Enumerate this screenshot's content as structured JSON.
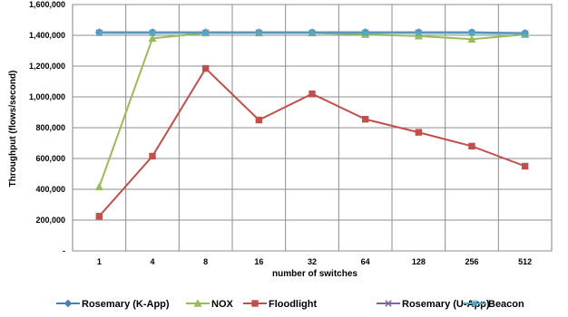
{
  "chart_data": {
    "type": "line",
    "title": "",
    "xlabel": "number of switches",
    "ylabel": "Throughput (flows/second)",
    "categories": [
      "1",
      "4",
      "8",
      "16",
      "32",
      "64",
      "128",
      "256",
      "512"
    ],
    "ylim": [
      0,
      1600000
    ],
    "yticks": [
      0,
      200000,
      400000,
      600000,
      800000,
      1000000,
      1200000,
      1400000,
      1600000
    ],
    "ytick_labels": [
      "-",
      "200,000",
      "400,000",
      "600,000",
      "800,000",
      "1,000,000",
      "1,200,000",
      "1,400,000",
      "1,600,000"
    ],
    "grid": true,
    "legend_position": "bottom",
    "series": [
      {
        "name": "Rosemary (K-App)",
        "marker": "diamond",
        "color": "#4a7ebb",
        "values": [
          1420000,
          1420000,
          1420000,
          1420000,
          1420000,
          1420000,
          1420000,
          1420000,
          1415000
        ]
      },
      {
        "name": "NOX",
        "marker": "triangle",
        "color": "#9bbb59",
        "values": [
          415000,
          1380000,
          1415000,
          1415000,
          1415000,
          1405000,
          1395000,
          1375000,
          1405000
        ]
      },
      {
        "name": "Floodlight",
        "marker": "square",
        "color": "#c0504d",
        "values": [
          225000,
          615000,
          1185000,
          850000,
          1020000,
          855000,
          770000,
          680000,
          550000
        ]
      },
      {
        "name": "Rosemary (U-App)",
        "marker": "x",
        "color": "#8064a2",
        "values": [
          1418000,
          1418000,
          1418000,
          1418000,
          1418000,
          1418000,
          1418000,
          1418000,
          1412000
        ]
      },
      {
        "name": "Beacon",
        "marker": "star",
        "color": "#4bacc6",
        "values": [
          1415000,
          1415000,
          1415000,
          1415000,
          1415000,
          1415000,
          1415000,
          1415000,
          1410000
        ]
      }
    ]
  }
}
